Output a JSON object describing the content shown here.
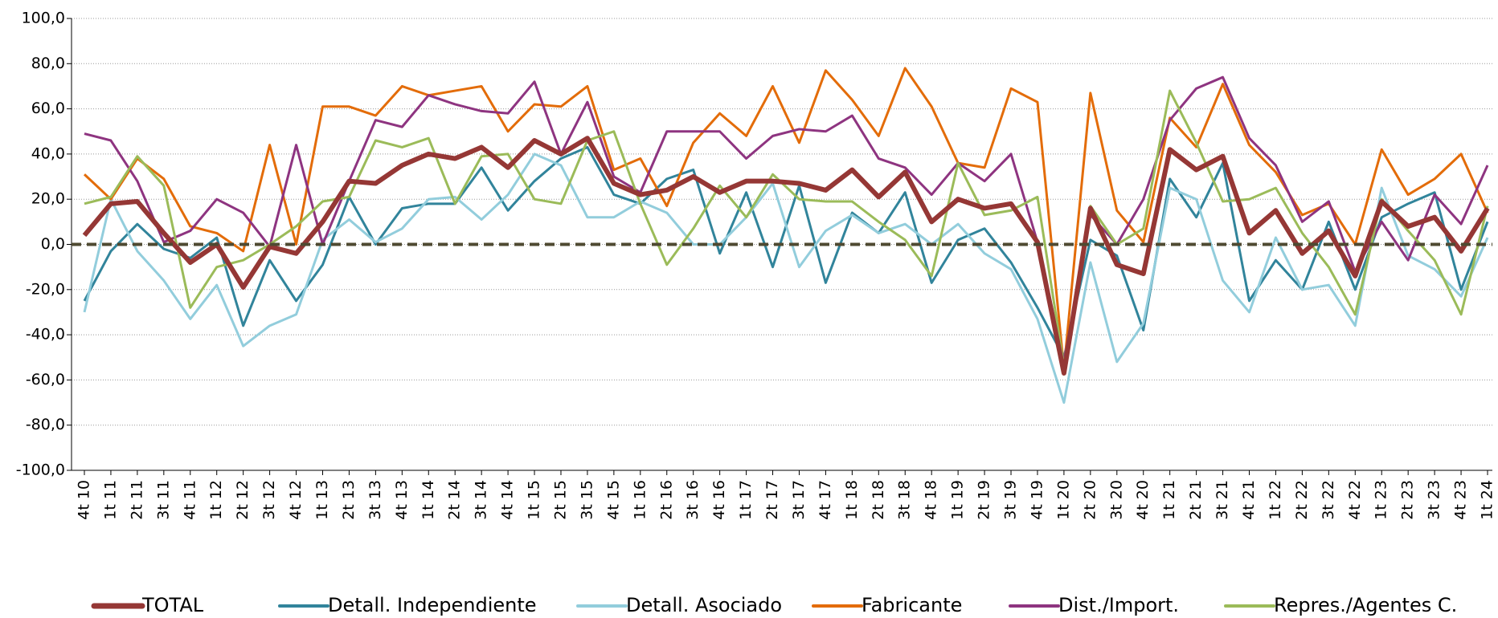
{
  "chart_data": {
    "type": "line",
    "categories": [
      "4t 10",
      "1t 11",
      "2t 11",
      "3t 11",
      "4t 11",
      "1t 12",
      "2t 12",
      "3t 12",
      "4t 12",
      "1t 13",
      "2t 13",
      "3t 13",
      "4t 13",
      "1t 14",
      "2t 14",
      "3t 14",
      "4t 14",
      "1t 15",
      "2t 15",
      "3t 15",
      "4t 15",
      "1t 16",
      "2t 16",
      "3t 16",
      "4t 16",
      "1t 17",
      "2t 17",
      "3t 17",
      "4t 17",
      "1t 18",
      "2t 18",
      "3t 18",
      "4t 18",
      "1t 19",
      "2t 19",
      "3t 19",
      "4t 19",
      "1t 20",
      "2t 20",
      "3t 20",
      "4t 20",
      "1t 21",
      "2t 21",
      "3t 21",
      "4t 21",
      "1t 22",
      "2t 22",
      "3t 22",
      "4t 22",
      "1t 23",
      "2t 23",
      "3t 23",
      "4t 23",
      "1t 24"
    ],
    "series": [
      {
        "name": "TOTAL",
        "color": "#953735",
        "values": [
          4,
          18,
          19,
          5,
          -8,
          0,
          -19,
          -1,
          -4,
          10,
          28,
          27,
          35,
          40,
          38,
          43,
          34,
          46,
          40,
          47,
          27,
          22,
          24,
          30,
          23,
          28,
          28,
          27,
          24,
          33,
          21,
          32,
          10,
          20,
          16,
          18,
          1,
          -57,
          16,
          -9,
          -13,
          42,
          33,
          39,
          5,
          15,
          -4,
          6,
          -14,
          19,
          8,
          12,
          -3,
          16
        ]
      },
      {
        "name": "Detall. Independiente",
        "color": "#31849b",
        "values": [
          -25,
          -3,
          9,
          -2,
          -6,
          3,
          -36,
          -7,
          -25,
          -9,
          21,
          0,
          16,
          18,
          18,
          34,
          15,
          28,
          38,
          43,
          22,
          18,
          29,
          33,
          -4,
          23,
          -10,
          26,
          -17,
          14,
          5,
          23,
          -17,
          2,
          7,
          -8,
          -28,
          -50,
          2,
          -5,
          -38,
          29,
          12,
          36,
          -25,
          -7,
          -20,
          10,
          -20,
          12,
          18,
          23,
          -20,
          10
        ]
      },
      {
        "name": "Detall. Asociado",
        "color": "#92cddc",
        "values": [
          -30,
          20,
          -3,
          -16,
          -33,
          -18,
          -45,
          -36,
          -31,
          2,
          11,
          1,
          7,
          20,
          21,
          11,
          22,
          40,
          35,
          12,
          12,
          19,
          14,
          0,
          0,
          12,
          27,
          -10,
          6,
          13,
          5,
          9,
          0,
          9,
          -4,
          -11,
          -33,
          -70,
          -8,
          -52,
          -35,
          25,
          20,
          -16,
          -30,
          3,
          -20,
          -18,
          -36,
          25,
          -5,
          -11,
          -23,
          3
        ]
      },
      {
        "name": "Fabricante",
        "color": "#e36c09",
        "values": [
          31,
          20,
          38,
          29,
          8,
          5,
          -3,
          44,
          0,
          61,
          61,
          57,
          70,
          66,
          68,
          70,
          50,
          62,
          61,
          70,
          33,
          38,
          17,
          45,
          58,
          48,
          70,
          45,
          77,
          64,
          48,
          78,
          61,
          36,
          34,
          69,
          63,
          -55,
          67,
          15,
          1,
          56,
          43,
          71,
          44,
          32,
          13,
          18,
          0,
          42,
          22,
          29,
          40,
          14
        ]
      },
      {
        "name": "Dist./Import.",
        "color": "#8e3480",
        "values": [
          49,
          46,
          28,
          1,
          6,
          20,
          14,
          -1,
          44,
          0,
          28,
          55,
          52,
          66,
          62,
          59,
          58,
          72,
          40,
          63,
          30,
          23,
          50,
          50,
          50,
          38,
          48,
          51,
          50,
          57,
          38,
          34,
          22,
          36,
          28,
          40,
          1,
          -52,
          13,
          0,
          20,
          55,
          69,
          74,
          47,
          35,
          10,
          19,
          -12,
          10,
          -7,
          22,
          9,
          35
        ]
      },
      {
        "name": "Repres./Agentes C.",
        "color": "#9bbb59",
        "values": [
          18,
          21,
          39,
          26,
          -28,
          -10,
          -7,
          0,
          8,
          19,
          21,
          46,
          43,
          47,
          18,
          39,
          40,
          20,
          18,
          46,
          50,
          18,
          -9,
          7,
          26,
          12,
          31,
          20,
          19,
          19,
          10,
          2,
          -14,
          36,
          13,
          15,
          21,
          -54,
          17,
          0,
          7,
          68,
          45,
          19,
          20,
          25,
          5,
          -10,
          -31,
          20,
          6,
          -7,
          -31,
          17
        ]
      }
    ],
    "ylim": [
      -100,
      100
    ],
    "yticks": [
      {
        "value": -100,
        "label": "-100,0"
      },
      {
        "value": -80,
        "label": "-80,0"
      },
      {
        "value": -60,
        "label": "-60,0"
      },
      {
        "value": -40,
        "label": "-40,0"
      },
      {
        "value": -20,
        "label": "-20,0"
      },
      {
        "value": 0,
        "label": "0,0"
      },
      {
        "value": 20,
        "label": "20,0"
      },
      {
        "value": 40,
        "label": "40,0"
      },
      {
        "value": 60,
        "label": "60,0"
      },
      {
        "value": 80,
        "label": "80,0"
      },
      {
        "value": 100,
        "label": "100,0"
      }
    ],
    "grid": true,
    "legend": "bottom"
  }
}
